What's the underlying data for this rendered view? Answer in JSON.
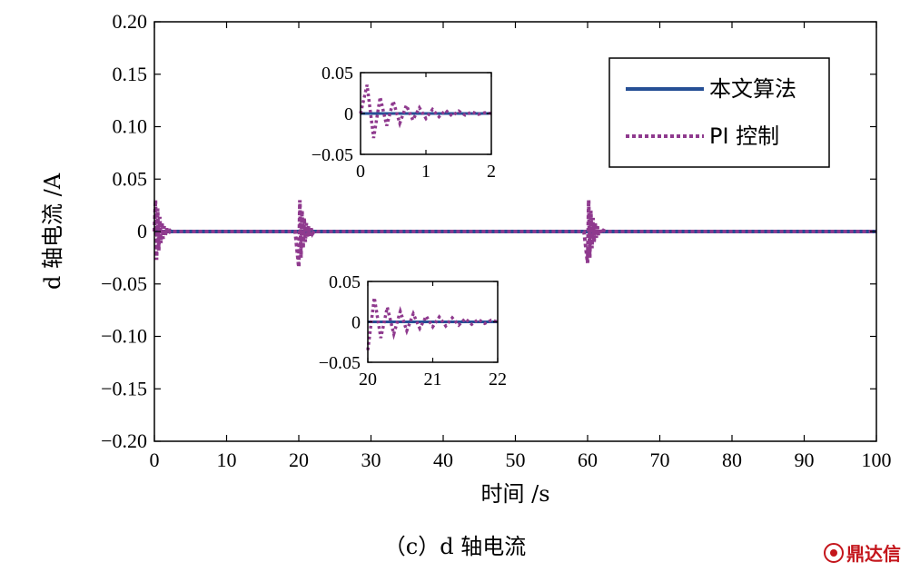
{
  "caption": "（c）d 轴电流",
  "watermark": "鼎达信",
  "colors": {
    "algo": "#264f95",
    "pi": "#8f3a8e"
  },
  "chart_data": [
    {
      "type": "line",
      "xlabel": "时间 /s",
      "ylabel": "d 轴电流 /A",
      "xlim": [
        0,
        100
      ],
      "ylim": [
        -0.2,
        0.2
      ],
      "xticks": [
        0,
        10,
        20,
        30,
        40,
        50,
        60,
        70,
        80,
        90,
        100
      ],
      "xtick_labels": [
        "0",
        "10",
        "20",
        "30",
        "40",
        "50",
        "60",
        "70",
        "80",
        "90",
        "100"
      ],
      "yticks": [
        0.2,
        0.15,
        0.1,
        0.05,
        0,
        -0.05,
        -0.1,
        -0.15,
        -0.2
      ],
      "ytick_labels": [
        "0.20",
        "0.15",
        "0.10",
        "0.05",
        "0",
        "−0.05",
        "−0.10",
        "−0.15",
        "−0.20"
      ],
      "legend_position": "top-right",
      "series": [
        {
          "name": "本文算法",
          "style": "solid",
          "x": [
            0,
            100
          ],
          "y": [
            0,
            0
          ]
        },
        {
          "name": "PI 控制",
          "style": "dotted",
          "x": [
            0,
            0.15,
            0.3,
            0.45,
            0.6,
            0.75,
            0.9,
            1.05,
            1.2,
            1.35,
            1.5,
            1.7,
            1.9,
            2.2,
            2.5,
            19.5,
            20,
            20.15,
            20.3,
            20.45,
            20.6,
            20.75,
            20.9,
            21.05,
            21.2,
            21.35,
            21.5,
            21.7,
            21.9,
            22.2,
            22.5,
            59.5,
            60,
            60.15,
            60.3,
            60.45,
            60.6,
            60.75,
            60.9,
            61.05,
            61.2,
            61.35,
            61.5,
            61.7,
            61.9,
            62.2,
            62.5,
            100
          ],
          "y": [
            0,
            0.03,
            -0.027,
            0.022,
            -0.018,
            0.014,
            -0.011,
            0.009,
            -0.007,
            0.005,
            -0.004,
            0.003,
            -0.002,
            0.001,
            0,
            0,
            -0.034,
            0.03,
            -0.025,
            0.02,
            -0.016,
            0.013,
            -0.01,
            0.008,
            -0.006,
            0.005,
            -0.004,
            0.003,
            -0.002,
            0.001,
            0,
            0,
            -0.03,
            0.03,
            -0.025,
            0.02,
            -0.016,
            0.013,
            -0.01,
            0.008,
            -0.006,
            0.005,
            -0.004,
            0.003,
            -0.002,
            0.001,
            0,
            0
          ]
        }
      ]
    },
    {
      "type": "line",
      "inset": "upper",
      "xlim": [
        0,
        2
      ],
      "ylim": [
        -0.05,
        0.05
      ],
      "xticks": [
        0,
        1,
        2
      ],
      "xtick_labels": [
        "0",
        "1",
        "2"
      ],
      "yticks": [
        0.05,
        0,
        -0.05
      ],
      "ytick_labels": [
        "0.05",
        "0",
        "−0.05"
      ],
      "series": [
        {
          "name": "本文算法",
          "style": "solid",
          "x": [
            0,
            2
          ],
          "y": [
            0,
            0
          ]
        },
        {
          "name": "PI 控制",
          "style": "dotted",
          "x": [
            0,
            0.1,
            0.2,
            0.3,
            0.4,
            0.5,
            0.6,
            0.7,
            0.8,
            0.9,
            1.0,
            1.1,
            1.2,
            1.3,
            1.4,
            1.5,
            1.6,
            1.7,
            1.8,
            1.9,
            2.0
          ],
          "y": [
            0,
            0.035,
            -0.03,
            0.02,
            -0.015,
            0.015,
            -0.012,
            0.01,
            -0.008,
            0.007,
            -0.006,
            0.005,
            -0.004,
            0.004,
            -0.003,
            0.003,
            -0.002,
            0.002,
            -0.001,
            0.001,
            0
          ]
        }
      ]
    },
    {
      "type": "line",
      "inset": "lower",
      "xlim": [
        20,
        22
      ],
      "ylim": [
        -0.05,
        0.05
      ],
      "xticks": [
        20,
        21,
        22
      ],
      "xtick_labels": [
        "20",
        "21",
        "22"
      ],
      "yticks": [
        0.05,
        0,
        -0.05
      ],
      "ytick_labels": [
        "0.05",
        "0",
        "−0.05"
      ],
      "series": [
        {
          "name": "本文算法",
          "style": "solid",
          "x": [
            20,
            22
          ],
          "y": [
            0,
            0
          ]
        },
        {
          "name": "PI 控制",
          "style": "dotted",
          "x": [
            20,
            20.1,
            20.2,
            20.3,
            20.4,
            20.5,
            20.6,
            20.7,
            20.8,
            20.9,
            21.0,
            21.1,
            21.2,
            21.3,
            21.4,
            21.5,
            21.6,
            21.7,
            21.8,
            21.9,
            22.0
          ],
          "y": [
            -0.035,
            0.03,
            -0.02,
            0.018,
            -0.015,
            0.013,
            -0.011,
            0.01,
            -0.008,
            0.007,
            -0.006,
            0.006,
            -0.005,
            0.005,
            -0.004,
            0.004,
            -0.003,
            0.003,
            -0.002,
            0.002,
            0
          ]
        }
      ]
    }
  ]
}
